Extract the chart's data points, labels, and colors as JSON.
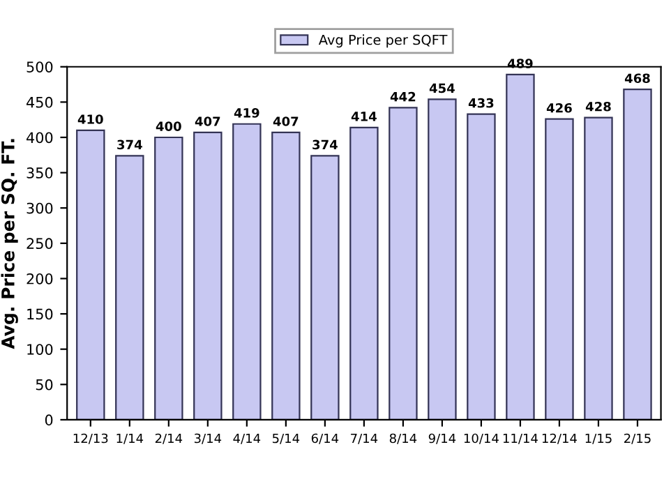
{
  "chart_data": {
    "type": "bar",
    "ylabel": "Avg. Price per SQ. FT.",
    "categories": [
      "12/13",
      "1/14",
      "2/14",
      "3/14",
      "4/14",
      "5/14",
      "6/14",
      "7/14",
      "8/14",
      "9/14",
      "10/14",
      "11/14",
      "12/14",
      "1/15",
      "2/15"
    ],
    "series": [
      {
        "name": "Avg Price per SQFT",
        "color": "#c8c8f2",
        "values": [
          410,
          374,
          400,
          407,
          419,
          407,
          374,
          414,
          442,
          454,
          433,
          489,
          426,
          428,
          468
        ]
      }
    ],
    "ylim": [
      0,
      500
    ],
    "yticks": [
      0,
      50,
      100,
      150,
      200,
      250,
      300,
      350,
      400,
      450,
      500
    ],
    "data_labels": true,
    "legend": "top",
    "grid": false
  }
}
